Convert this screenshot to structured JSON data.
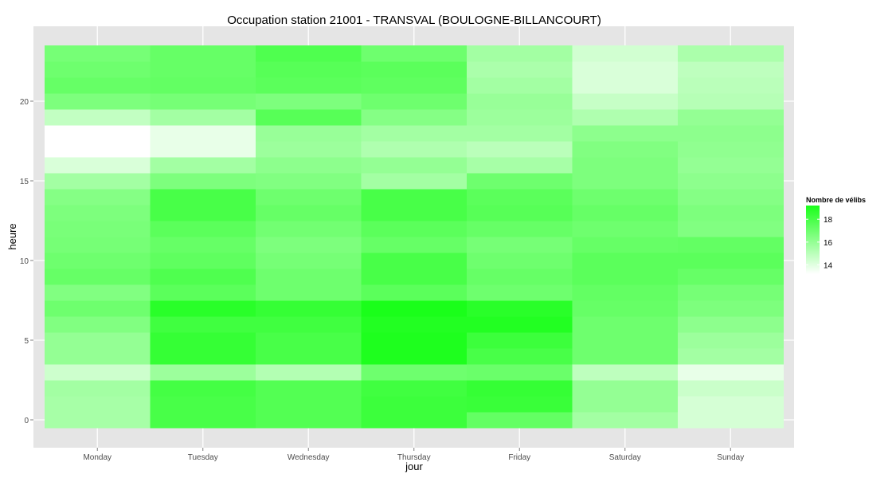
{
  "chart_data": {
    "type": "heatmap",
    "title": "Occupation station 21001 - TRANSVAL (BOULOGNE-BILLANCOURT)",
    "xlabel": "jour",
    "ylabel": "heure",
    "categories": [
      "Monday",
      "Tuesday",
      "Wednesday",
      "Thursday",
      "Friday",
      "Saturday",
      "Sunday"
    ],
    "hours": [
      0,
      1,
      2,
      3,
      4,
      5,
      6,
      7,
      8,
      9,
      10,
      11,
      12,
      13,
      14,
      15,
      16,
      17,
      18,
      19,
      20,
      21,
      22,
      23
    ],
    "ylim": [
      -0.5,
      23.5
    ],
    "y_ticks": [
      0,
      5,
      10,
      15,
      20
    ],
    "y_tick_labels": [
      "0",
      "5",
      "10",
      "15",
      "20"
    ],
    "grid": true,
    "legend": {
      "title": "Nombre de vélibs",
      "position": "right",
      "range": [
        13.2,
        19.2
      ],
      "breaks": [
        14,
        16,
        18
      ],
      "break_labels": [
        "14",
        "16",
        "18"
      ],
      "low_color": "#ffffff",
      "high_color": "#1aff1a"
    },
    "values": [
      [
        15.5,
        18.0,
        17.7,
        18.3,
        17.3,
        15.6,
        14.3
      ],
      [
        15.5,
        18.0,
        17.7,
        18.3,
        18.4,
        16.0,
        14.3
      ],
      [
        15.6,
        18.1,
        17.7,
        18.2,
        18.5,
        16.0,
        14.6
      ],
      [
        14.5,
        15.8,
        15.2,
        17.0,
        17.1,
        14.9,
        13.8
      ],
      [
        16.0,
        18.5,
        18.0,
        19.1,
        18.0,
        17.0,
        15.6
      ],
      [
        16.0,
        18.5,
        18.0,
        19.1,
        18.3,
        17.0,
        15.8
      ],
      [
        16.5,
        18.2,
        18.2,
        19.0,
        19.0,
        17.0,
        16.2
      ],
      [
        17.0,
        18.8,
        18.5,
        19.2,
        18.8,
        17.2,
        16.6
      ],
      [
        16.5,
        17.5,
        17.0,
        17.5,
        17.0,
        17.3,
        16.8
      ],
      [
        17.2,
        17.8,
        17.0,
        18.0,
        17.2,
        17.5,
        17.2
      ],
      [
        17.0,
        17.4,
        16.8,
        18.0,
        17.0,
        17.5,
        17.5
      ],
      [
        16.8,
        17.2,
        16.6,
        17.2,
        16.8,
        17.2,
        17.3
      ],
      [
        16.7,
        17.5,
        16.9,
        17.5,
        17.2,
        17.0,
        16.5
      ],
      [
        16.6,
        18.0,
        17.2,
        18.0,
        17.6,
        17.2,
        16.6
      ],
      [
        16.4,
        18.0,
        17.0,
        18.0,
        17.5,
        17.0,
        16.4
      ],
      [
        15.6,
        16.6,
        16.5,
        15.6,
        17.0,
        16.6,
        16.2
      ],
      [
        14.2,
        15.6,
        16.2,
        16.0,
        15.5,
        16.6,
        16.0
      ],
      [
        13.2,
        13.8,
        15.8,
        15.3,
        15.0,
        16.5,
        16.1
      ],
      [
        13.2,
        13.8,
        15.9,
        15.6,
        15.6,
        16.2,
        16.2
      ],
      [
        14.8,
        15.6,
        17.6,
        16.4,
        15.8,
        15.3,
        16.0
      ],
      [
        16.6,
        16.8,
        16.6,
        17.0,
        15.9,
        14.7,
        15.1
      ],
      [
        17.2,
        17.3,
        17.5,
        17.4,
        15.6,
        14.2,
        15.0
      ],
      [
        17.0,
        17.2,
        17.6,
        17.5,
        15.4,
        14.2,
        14.9
      ],
      [
        16.8,
        17.2,
        17.8,
        17.0,
        15.6,
        14.4,
        15.4
      ]
    ]
  }
}
